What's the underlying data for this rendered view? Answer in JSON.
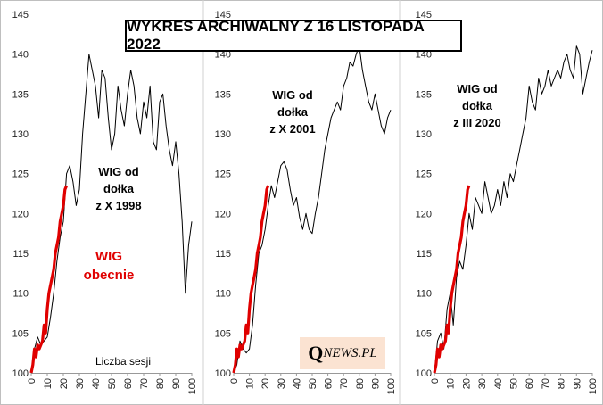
{
  "title": "WYKRES ARCHIWALNY Z 16 LISTOPADA 2022",
  "logo": {
    "q": "Q",
    "rest": "NEWS.PL"
  },
  "current_label": [
    "WIG",
    "obecnie"
  ],
  "session_label": "Liczba sesji",
  "colors": {
    "current": "#e00000",
    "historical": "#000000",
    "logo_bg": "#fbe3d2"
  },
  "chart_data": [
    {
      "type": "line",
      "name": "WIG od dołka z X 1998",
      "annotation": [
        "WIG od",
        "dołka",
        "z X 1998"
      ],
      "xlim": [
        0,
        100
      ],
      "ylim": [
        100,
        145
      ],
      "yticks": [
        100,
        105,
        110,
        115,
        120,
        125,
        130,
        135,
        140,
        145
      ],
      "xticks": [
        0,
        10,
        20,
        30,
        40,
        50,
        60,
        70,
        80,
        90,
        100
      ],
      "series": [
        {
          "name": "hist",
          "color": "#000000",
          "x": [
            0,
            2,
            4,
            6,
            8,
            10,
            12,
            14,
            16,
            18,
            20,
            22,
            24,
            26,
            28,
            30,
            32,
            34,
            36,
            38,
            40,
            42,
            44,
            46,
            48,
            50,
            52,
            54,
            56,
            58,
            60,
            62,
            64,
            66,
            68,
            70,
            72,
            74,
            76,
            78,
            80,
            82,
            84,
            86,
            88,
            90,
            92,
            94,
            96,
            98,
            100
          ],
          "y": [
            100,
            103,
            104.5,
            103.5,
            104,
            104.5,
            107,
            110,
            114,
            117,
            119,
            125,
            126,
            124,
            121,
            123,
            130,
            135,
            140,
            138,
            136,
            132,
            138,
            137,
            132,
            128,
            130,
            136,
            133,
            131,
            135,
            138,
            136,
            132,
            130,
            134,
            132,
            136,
            129,
            128,
            134,
            135,
            131,
            128,
            126,
            129,
            125,
            119,
            110,
            116,
            119
          ]
        },
        {
          "name": "current",
          "color": "#e00000",
          "x": [
            0,
            1,
            2,
            3,
            4,
            5,
            6,
            7,
            8,
            9,
            10,
            11,
            12,
            13,
            14,
            15,
            16,
            17,
            18,
            19,
            20,
            21,
            22
          ],
          "y": [
            100,
            101,
            103,
            102,
            103.5,
            103,
            103.5,
            104,
            106,
            105,
            108,
            110,
            111,
            112,
            113,
            115,
            116,
            117,
            119,
            120,
            121,
            123,
            123.5
          ]
        }
      ]
    },
    {
      "type": "line",
      "name": "WIG od dołka z X 2001",
      "annotation": [
        "WIG od",
        "dołka",
        "z X 2001"
      ],
      "xlim": [
        0,
        100
      ],
      "ylim": [
        100,
        145
      ],
      "yticks": [
        100,
        105,
        110,
        115,
        120,
        125,
        130,
        135,
        140,
        145
      ],
      "xticks": [
        0,
        10,
        20,
        30,
        40,
        50,
        60,
        70,
        80,
        90,
        100
      ],
      "series": [
        {
          "name": "hist",
          "color": "#000000",
          "x": [
            0,
            2,
            4,
            6,
            8,
            10,
            12,
            14,
            16,
            18,
            20,
            22,
            24,
            26,
            28,
            30,
            32,
            34,
            36,
            38,
            40,
            42,
            44,
            46,
            48,
            50,
            52,
            54,
            56,
            58,
            60,
            62,
            64,
            66,
            68,
            70,
            72,
            74,
            76,
            78,
            80,
            82,
            84,
            86,
            88,
            90,
            92,
            94,
            96,
            98,
            100
          ],
          "y": [
            100,
            101,
            104,
            103,
            102.5,
            103,
            106,
            111,
            115,
            116,
            118,
            121,
            123.5,
            122,
            124,
            126,
            126.5,
            125.5,
            123,
            121,
            122,
            119.5,
            118,
            120,
            118,
            117.5,
            120,
            122,
            125,
            128,
            130,
            132,
            133,
            134,
            133,
            136,
            137,
            139,
            138.5,
            140,
            141,
            138,
            136,
            134,
            133,
            135,
            133,
            131,
            130,
            132,
            133
          ]
        },
        {
          "name": "current",
          "color": "#e00000",
          "x": [
            0,
            1,
            2,
            3,
            4,
            5,
            6,
            7,
            8,
            9,
            10,
            11,
            12,
            13,
            14,
            15,
            16,
            17,
            18,
            19,
            20,
            21,
            22
          ],
          "y": [
            100,
            101,
            103,
            102,
            103.5,
            103,
            103.5,
            104,
            106,
            105,
            108,
            110,
            111,
            112,
            113,
            115,
            116,
            117,
            119,
            120,
            121,
            123,
            123.5
          ]
        }
      ]
    },
    {
      "type": "line",
      "name": "WIG od dołka z III 2020",
      "annotation": [
        "WIG od",
        "dołka",
        "z III 2020"
      ],
      "xlim": [
        0,
        100
      ],
      "ylim": [
        100,
        145
      ],
      "yticks": [
        100,
        105,
        110,
        115,
        120,
        125,
        130,
        135,
        140,
        145
      ],
      "xticks": [
        0,
        10,
        20,
        30,
        40,
        50,
        60,
        70,
        80,
        90,
        100
      ],
      "series": [
        {
          "name": "hist",
          "color": "#000000",
          "x": [
            0,
            2,
            4,
            6,
            8,
            10,
            12,
            14,
            16,
            18,
            20,
            22,
            24,
            26,
            28,
            30,
            32,
            34,
            36,
            38,
            40,
            42,
            44,
            46,
            48,
            50,
            52,
            54,
            56,
            58,
            60,
            62,
            64,
            66,
            68,
            70,
            72,
            74,
            76,
            78,
            80,
            82,
            84,
            86,
            88,
            90,
            92,
            94,
            96,
            98,
            100
          ],
          "y": [
            100,
            104,
            105,
            103,
            108,
            110,
            106,
            112,
            114,
            113,
            116,
            120,
            118,
            122,
            121,
            120,
            124,
            122,
            120,
            121,
            123,
            121,
            124,
            122,
            125,
            124,
            126,
            128,
            130,
            132,
            136,
            134,
            133,
            137,
            135,
            136,
            138,
            136,
            137,
            138,
            137,
            139,
            140,
            138,
            137,
            141,
            140,
            135,
            137,
            139,
            140.5
          ]
        },
        {
          "name": "current",
          "color": "#e00000",
          "x": [
            0,
            1,
            2,
            3,
            4,
            5,
            6,
            7,
            8,
            9,
            10,
            11,
            12,
            13,
            14,
            15,
            16,
            17,
            18,
            19,
            20,
            21,
            22
          ],
          "y": [
            100,
            101,
            103,
            102,
            103.5,
            103,
            103.5,
            104,
            106,
            105,
            108,
            110,
            111,
            112,
            113,
            115,
            116,
            117,
            119,
            120,
            121,
            123,
            123.5
          ]
        }
      ]
    }
  ]
}
